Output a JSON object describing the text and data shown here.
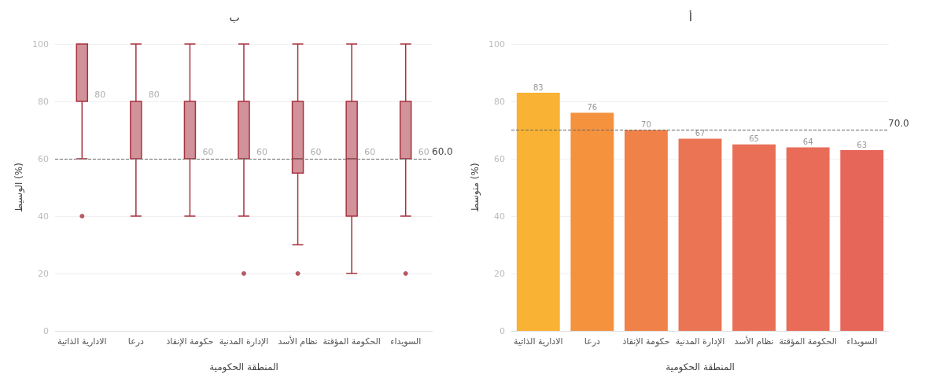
{
  "chart_data": [
    {
      "type": "bar",
      "title": "أ",
      "xlabel": "المنطقة الحكومية",
      "ylabel": "متوسط (%)",
      "categories": [
        "الادارية الذاتية",
        "درعا",
        "حكومة الإنقاذ",
        "الإدارة المدنية",
        "نظام الأسد",
        "الحكومة المؤقتة",
        "السويداء"
      ],
      "values": [
        83,
        76,
        70,
        67,
        65,
        64,
        63
      ],
      "colors": [
        "#f9b233",
        "#f5923e",
        "#ef8149",
        "#ea7454",
        "#e96f57",
        "#e86c58",
        "#e7665a"
      ],
      "ylim": [
        0,
        100
      ],
      "yticks": [
        0,
        20,
        40,
        60,
        80,
        100
      ],
      "grid": "y",
      "data_labels": true,
      "ref_lines": [
        {
          "axis": "y",
          "value": 70,
          "label": "70.0",
          "line_style": "dashed",
          "color": "#666666"
        }
      ]
    },
    {
      "type": "box",
      "title": "ب",
      "xlabel": "المنطقة الحكومية",
      "ylabel": "الوسيط (%)",
      "categories": [
        "الادارية الذاتية",
        "درعا",
        "حكومة الإنقاذ",
        "الإدارة المدنية",
        "نظام الأسد",
        "الحكومة المؤقتة",
        "السويداء"
      ],
      "color": "#a8323f",
      "boxes": [
        {
          "low": 60,
          "q1": 80,
          "median": 80,
          "q3": 100,
          "high": 100,
          "outliers": [
            40
          ]
        },
        {
          "low": 40,
          "q1": 60,
          "median": 80,
          "q3": 80,
          "high": 100
        },
        {
          "low": 40,
          "q1": 60,
          "median": 60,
          "q3": 80,
          "high": 100
        },
        {
          "low": 40,
          "q1": 60,
          "median": 60,
          "q3": 80,
          "high": 100,
          "outliers": [
            20
          ]
        },
        {
          "low": 30,
          "q1": 55,
          "median": 60,
          "q3": 80,
          "high": 100,
          "outliers": [
            20
          ]
        },
        {
          "low": 20,
          "q1": 40,
          "median": 60,
          "q3": 80,
          "high": 100
        },
        {
          "low": 40,
          "q1": 60,
          "median": 60,
          "q3": 80,
          "high": 100,
          "outliers": [
            20
          ]
        }
      ],
      "annotations": [
        {
          "text": "80",
          "x": "الادارية الذاتية",
          "y": 80
        },
        {
          "text": "80",
          "x": "درعا",
          "y": 80
        },
        {
          "text": "60",
          "x": "حكومة الإنقاذ",
          "y": 60
        },
        {
          "text": "60",
          "x": "الإدارة المدنية",
          "y": 60
        },
        {
          "text": "60",
          "x": "نظام الأسد",
          "y": 60
        },
        {
          "text": "60",
          "x": "الحكومة المؤقتة",
          "y": 60
        },
        {
          "text": "60",
          "x": "السويداء",
          "y": 60
        }
      ],
      "ylim": [
        0,
        100
      ],
      "yticks": [
        0,
        20,
        40,
        60,
        80,
        100
      ],
      "grid": "y",
      "ref_lines": [
        {
          "axis": "y",
          "value": 60,
          "label": "60.0",
          "line_style": "dashed",
          "color": "#666666"
        }
      ]
    }
  ]
}
